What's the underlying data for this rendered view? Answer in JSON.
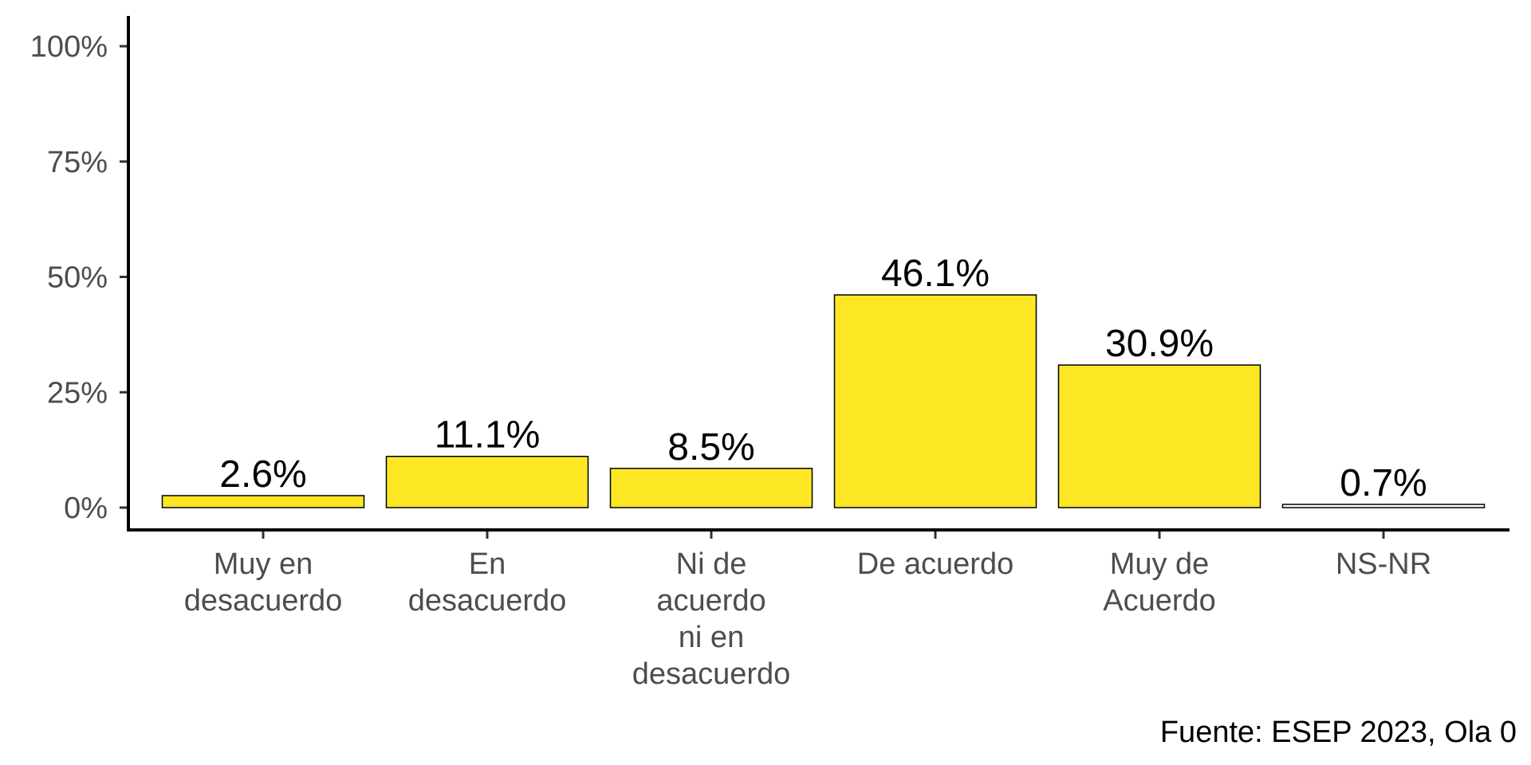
{
  "chart_data": {
    "type": "bar",
    "title": "",
    "xlabel": "",
    "ylabel": "",
    "ylim": [
      0,
      100
    ],
    "yticks": [
      0,
      25,
      50,
      75,
      100
    ],
    "ytick_labels": [
      "0%",
      "25%",
      "50%",
      "75%",
      "100%"
    ],
    "categories": [
      [
        "Muy en",
        "desacuerdo"
      ],
      [
        "En",
        "desacuerdo"
      ],
      [
        "Ni de",
        "acuerdo",
        "ni en",
        "desacuerdo"
      ],
      [
        "De acuerdo"
      ],
      [
        "Muy de",
        "Acuerdo"
      ],
      [
        "NS-NR"
      ]
    ],
    "values": [
      2.6,
      11.1,
      8.5,
      46.1,
      30.9,
      0.7
    ],
    "value_labels": [
      "2.6%",
      "11.1%",
      "8.5%",
      "46.1%",
      "30.9%",
      "0.7%"
    ],
    "bar_colors": [
      "#fde725",
      "#fde725",
      "#fde725",
      "#fde725",
      "#fde725",
      "#ffffff"
    ],
    "caption": "Fuente: ESEP 2023, Ola 0"
  }
}
